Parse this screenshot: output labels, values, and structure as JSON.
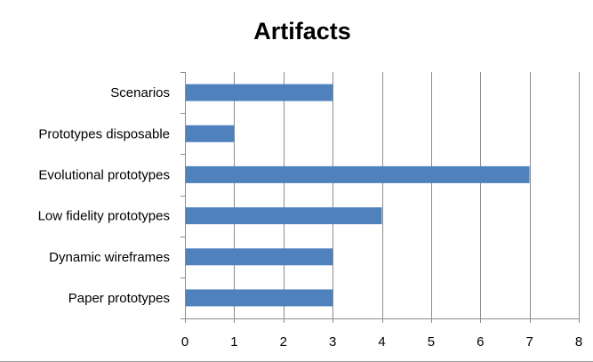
{
  "chart_data": {
    "type": "bar",
    "orientation": "horizontal",
    "title": "Artifacts",
    "xlabel": "",
    "ylabel": "",
    "categories": [
      "Scenarios",
      "Prototypes disposable",
      "Evolutional prototypes",
      "Low fidelity prototypes",
      "Dynamic wireframes",
      "Paper prototypes"
    ],
    "values": [
      3,
      1,
      7,
      4,
      3,
      3
    ],
    "xlim": [
      0,
      8
    ],
    "xticks": [
      "0",
      "1",
      "2",
      "3",
      "4",
      "5",
      "6",
      "7",
      "8"
    ],
    "grid": "vertical",
    "legend": "none",
    "bar_color": "#4f81bd"
  }
}
